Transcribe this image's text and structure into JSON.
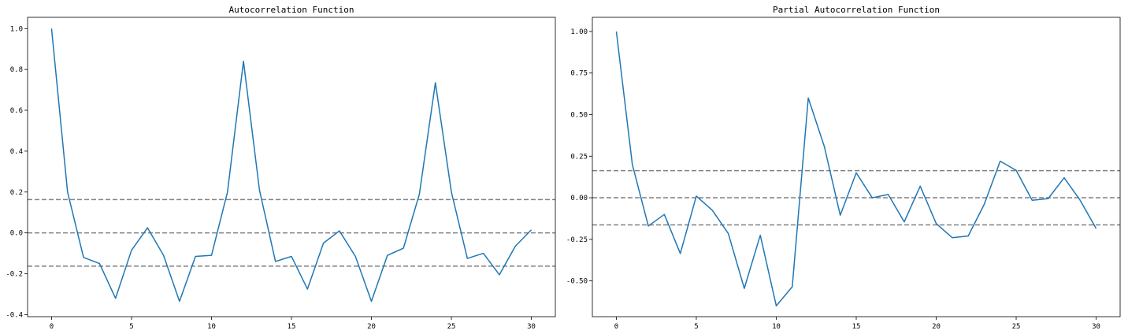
{
  "chart_data": [
    {
      "type": "line",
      "title": "Autocorrelation Function",
      "xlabel": "",
      "ylabel": "",
      "xlim": [
        -1.5,
        31.5
      ],
      "ylim": [
        -0.41,
        1.055
      ],
      "xticks": [
        0,
        5,
        10,
        15,
        20,
        25,
        30
      ],
      "yticks": [
        -0.4,
        -0.2,
        0.0,
        0.2,
        0.4,
        0.6,
        0.8,
        1.0
      ],
      "ytick_labels": [
        "-0.4",
        "-0.2",
        "0.0",
        "0.2",
        "0.4",
        "0.6",
        "0.8",
        "1.0"
      ],
      "grid": false,
      "x": [
        0,
        1,
        2,
        3,
        4,
        5,
        6,
        7,
        8,
        9,
        10,
        11,
        12,
        13,
        14,
        15,
        16,
        17,
        18,
        19,
        20,
        21,
        22,
        23,
        24,
        25,
        26,
        27,
        28,
        29,
        30
      ],
      "series": [
        {
          "values": [
            1.0,
            0.2,
            -0.12,
            -0.15,
            -0.32,
            -0.085,
            0.025,
            -0.11,
            -0.335,
            -0.115,
            -0.11,
            0.2,
            0.84,
            0.21,
            -0.14,
            -0.115,
            -0.275,
            -0.05,
            0.01,
            -0.115,
            -0.335,
            -0.11,
            -0.075,
            0.19,
            0.735,
            0.2,
            -0.125,
            -0.1,
            -0.205,
            -0.065,
            0.015
          ],
          "color": "#1f77b4"
        }
      ],
      "reference_lines": [
        {
          "y": 0.163,
          "color": "#808080",
          "style": "dashed"
        },
        {
          "y": 0.0,
          "color": "#808080",
          "style": "dashed"
        },
        {
          "y": -0.163,
          "color": "#808080",
          "style": "dashed"
        }
      ]
    },
    {
      "type": "line",
      "title": "Partial Autocorrelation Function",
      "xlabel": "",
      "ylabel": "",
      "xlim": [
        -1.5,
        31.5
      ],
      "ylim": [
        -0.715,
        1.085
      ],
      "xticks": [
        0,
        5,
        10,
        15,
        20,
        25,
        30
      ],
      "yticks": [
        -0.5,
        -0.25,
        0.0,
        0.25,
        0.5,
        0.75,
        1.0
      ],
      "ytick_labels": [
        "-0.50",
        "-0.25",
        "0.00",
        "0.25",
        "0.50",
        "0.75",
        "1.00"
      ],
      "grid": false,
      "x": [
        0,
        1,
        2,
        3,
        4,
        5,
        6,
        7,
        8,
        9,
        10,
        11,
        12,
        13,
        14,
        15,
        16,
        17,
        18,
        19,
        20,
        21,
        22,
        23,
        24,
        25,
        26,
        27,
        28,
        29,
        30
      ],
      "series": [
        {
          "values": [
            1.0,
            0.2,
            -0.17,
            -0.1,
            -0.335,
            0.01,
            -0.075,
            -0.215,
            -0.545,
            -0.225,
            -0.65,
            -0.535,
            0.6,
            0.31,
            -0.105,
            0.15,
            0.0,
            0.02,
            -0.145,
            0.07,
            -0.155,
            -0.24,
            -0.23,
            -0.04,
            0.22,
            0.165,
            -0.015,
            -0.005,
            0.12,
            -0.015,
            -0.185
          ],
          "color": "#1f77b4"
        }
      ],
      "reference_lines": [
        {
          "y": 0.163,
          "color": "#808080",
          "style": "dashed"
        },
        {
          "y": 0.0,
          "color": "#808080",
          "style": "dashed"
        },
        {
          "y": -0.163,
          "color": "#808080",
          "style": "dashed"
        }
      ]
    }
  ]
}
